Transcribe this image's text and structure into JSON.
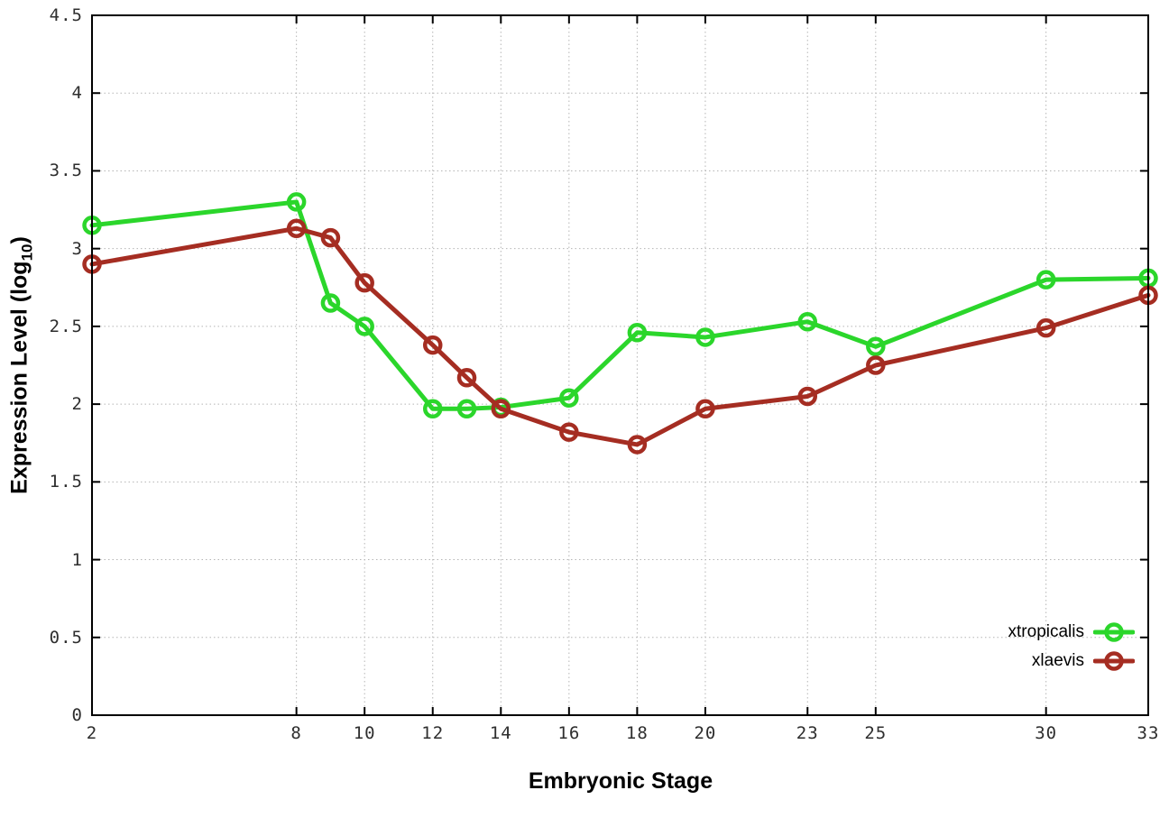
{
  "figure": {
    "xlabel": "Embryonic Stage",
    "ylabel_prefix": "Expression Level (log",
    "ylabel_sub": "10",
    "ylabel_suffix": ")",
    "background_color": "#ffffff",
    "border_color": "#000000",
    "grid_color": "#b5b5b5"
  },
  "chart_data": {
    "type": "line",
    "title": "",
    "xlabel": "Embryonic Stage",
    "ylabel": "Expression Level (log10)",
    "xlim": [
      2,
      33
    ],
    "ylim": [
      0,
      4.5
    ],
    "grid": true,
    "legend_position": "inside-bottom-right",
    "x_ticks": [
      2,
      8,
      10,
      12,
      14,
      16,
      18,
      20,
      23,
      25,
      30,
      33
    ],
    "x_tick_labels": [
      "2",
      "8",
      "10",
      "12",
      "14",
      "16",
      "18",
      "20",
      "23",
      "25",
      "30",
      "33"
    ],
    "y_ticks": [
      0,
      0.5,
      1,
      1.5,
      2,
      2.5,
      3,
      3.5,
      4,
      4.5
    ],
    "y_tick_labels": [
      "0",
      "0.5",
      "1",
      "1.5",
      "2",
      "2.5",
      "3",
      "3.5",
      "4",
      "4.5"
    ],
    "x": [
      2,
      8,
      9,
      10,
      12,
      13,
      14,
      16,
      18,
      20,
      23,
      25,
      30,
      33
    ],
    "series": [
      {
        "name": "xtropicalis",
        "color": "#2bd62b",
        "marker": "open-circle",
        "values": [
          3.15,
          3.3,
          2.65,
          2.5,
          1.97,
          1.97,
          1.98,
          2.04,
          2.46,
          2.43,
          2.53,
          2.37,
          2.8,
          2.81
        ]
      },
      {
        "name": "xlaevis",
        "color": "#a52d22",
        "marker": "open-circle",
        "values": [
          2.9,
          3.13,
          3.07,
          2.78,
          2.38,
          2.17,
          1.97,
          1.82,
          1.74,
          1.97,
          2.05,
          2.25,
          2.49,
          2.7
        ]
      }
    ]
  }
}
